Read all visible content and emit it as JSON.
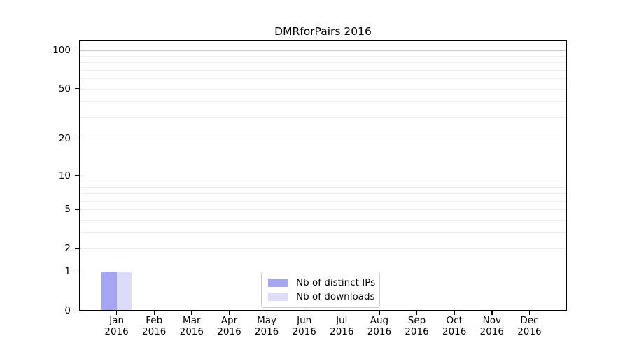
{
  "chart_data": {
    "type": "bar",
    "title": "DMRforPairs 2016",
    "categories": [
      "Jan 2016",
      "Feb 2016",
      "Mar 2016",
      "Apr 2016",
      "May 2016",
      "Jun 2016",
      "Jul 2016",
      "Aug 2016",
      "Sep 2016",
      "Oct 2016",
      "Nov 2016",
      "Dec 2016"
    ],
    "series": [
      {
        "name": "Nb of distinct IPs",
        "color": "#a5a5f1",
        "values": [
          1,
          0,
          0,
          0,
          0,
          0,
          0,
          0,
          0,
          0,
          0,
          0
        ]
      },
      {
        "name": "Nb of downloads",
        "color": "#dcdcf8",
        "values": [
          1,
          0,
          0,
          0,
          0,
          0,
          0,
          0,
          0,
          0,
          0,
          0
        ]
      }
    ],
    "xlabel": "",
    "ylabel": "",
    "yscale": "log1p",
    "yticks": [
      0,
      1,
      2,
      5,
      10,
      20,
      50,
      100
    ],
    "ylim": [
      0,
      120
    ],
    "grid": {
      "major": [
        1,
        10,
        100
      ],
      "minor": [
        2,
        3,
        4,
        5,
        6,
        7,
        8,
        9,
        20,
        30,
        40,
        50,
        60,
        70,
        80,
        90
      ]
    },
    "legend": {
      "position": "lower center"
    }
  },
  "colors": {
    "axis": "#000000",
    "grid_major": "#c9c9c9",
    "grid_minor": "#efefef",
    "background": "#ffffff"
  }
}
